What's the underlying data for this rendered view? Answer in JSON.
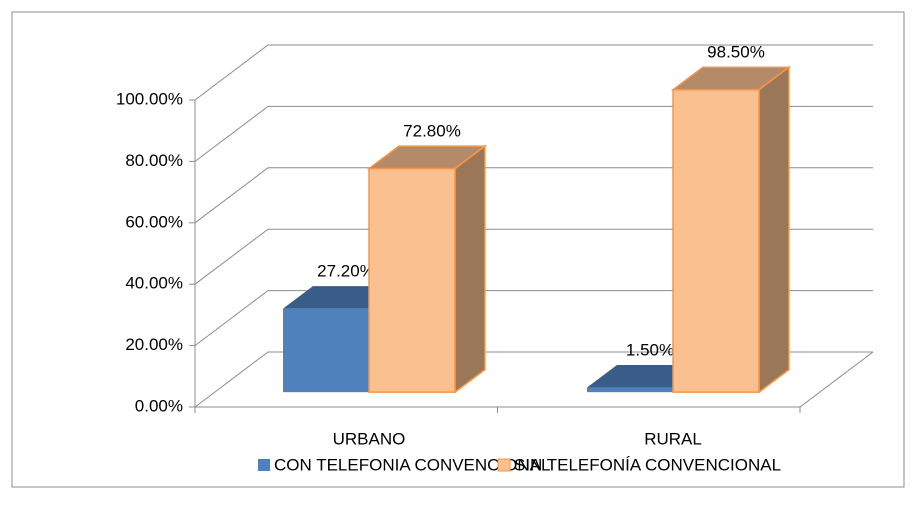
{
  "chart_data": {
    "type": "bar3d",
    "categories": [
      "URBANO",
      "RURAL"
    ],
    "series": [
      {
        "name": "CON TELEFONIA CONVENCIONAL",
        "color": "#4f81bd",
        "values": [
          27.2,
          1.5
        ],
        "value_labels": [
          "27.20%",
          "1.50%"
        ]
      },
      {
        "name": "SIN TELEFONÍA CONVENCIONAL",
        "color": "#fac090",
        "values": [
          72.8,
          98.5
        ],
        "value_labels": [
          "72.80%",
          "98.50%"
        ]
      }
    ],
    "ylim": [
      0,
      100
    ],
    "yticks": [
      {
        "value": 0,
        "label": "0.00%"
      },
      {
        "value": 20,
        "label": "20.00%"
      },
      {
        "value": 40,
        "label": "40.00%"
      },
      {
        "value": 60,
        "label": "60.00%"
      },
      {
        "value": 80,
        "label": "80.00%"
      },
      {
        "value": 100,
        "label": "100.00%"
      }
    ],
    "grid": true,
    "legend": "bottom"
  }
}
